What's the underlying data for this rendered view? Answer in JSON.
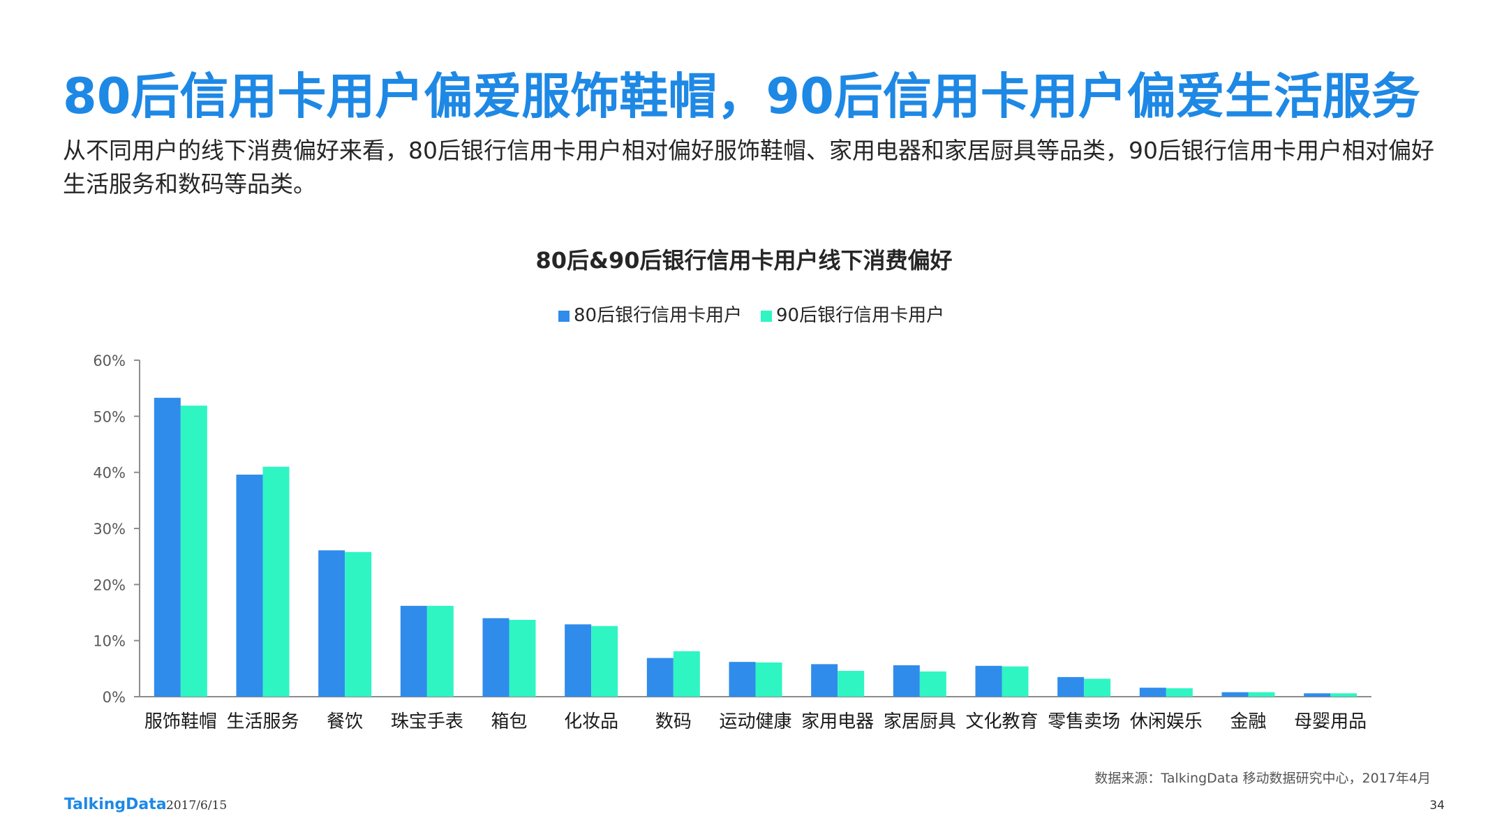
{
  "slide": {
    "headline": "80后信用卡用户偏爱服饰鞋帽，90后信用卡用户偏爱生活服务",
    "summary": "从不同用户的线下消费偏好来看，80后银行信用卡用户相对偏好服饰鞋帽、家用电器和家居厨具等品类，90后银行信用卡用户相对偏好生活服务和数码等品类。",
    "source": "数据来源：TalkingData 移动数据研究中心，2017年4月",
    "footer_logo": "TalkingData",
    "footer_date": "2017/6/15",
    "page_number": "34"
  },
  "colors": {
    "headline": "#1e88e5",
    "series_80": "#2f8ceb",
    "series_90": "#2ff5c3",
    "axis": "#8c8c8c"
  },
  "chart_data": {
    "type": "bar",
    "title": "80后&90后银行信用卡用户线下消费偏好",
    "xlabel": "",
    "ylabel": "",
    "ylim": [
      0,
      60
    ],
    "yticks": [
      0,
      10,
      20,
      30,
      40,
      50,
      60
    ],
    "ytick_labels": [
      "0%",
      "10%",
      "20%",
      "30%",
      "40%",
      "50%",
      "60%"
    ],
    "grid": false,
    "legend": "top-center",
    "categories": [
      "服饰鞋帽",
      "生活服务",
      "餐饮",
      "珠宝手表",
      "箱包",
      "化妆品",
      "数码",
      "运动健康",
      "家用电器",
      "家居厨具",
      "文化教育",
      "零售卖场",
      "休闲娱乐",
      "金融",
      "母婴用品"
    ],
    "series": [
      {
        "name": "80后银行信用卡用户",
        "values": [
          53.3,
          39.6,
          26.1,
          16.2,
          14.0,
          12.9,
          6.9,
          6.2,
          5.8,
          5.6,
          5.5,
          3.5,
          1.6,
          0.8,
          0.6
        ]
      },
      {
        "name": "90后银行信用卡用户",
        "values": [
          51.9,
          41.0,
          25.8,
          16.2,
          13.7,
          12.6,
          8.1,
          6.1,
          4.6,
          4.5,
          5.4,
          3.2,
          1.5,
          0.8,
          0.6
        ]
      }
    ]
  }
}
